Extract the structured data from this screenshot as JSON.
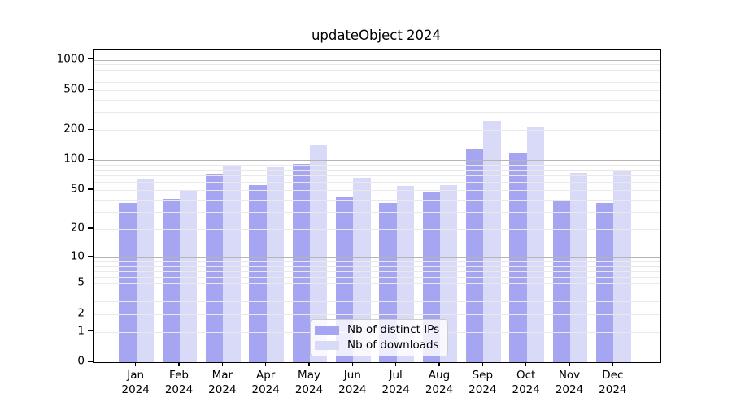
{
  "chart_data": {
    "type": "bar",
    "title": "updateObject 2024",
    "categories": [
      "Jan",
      "Feb",
      "Mar",
      "Apr",
      "May",
      "Jun",
      "Jul",
      "Aug",
      "Sep",
      "Oct",
      "Nov",
      "Dec"
    ],
    "x_tick_year": "2024",
    "series": [
      {
        "name": "Nb of distinct IPs",
        "color": "#a5a5f1",
        "values": [
          37,
          41,
          73,
          56,
          92,
          43,
          37,
          48,
          131,
          116,
          39,
          37
        ]
      },
      {
        "name": "Nb of downloads",
        "color": "#d9d9f8",
        "values": [
          64,
          50,
          89,
          85,
          144,
          66,
          55,
          56,
          246,
          213,
          75,
          81
        ]
      }
    ],
    "y_ticks": [
      0,
      1,
      2,
      5,
      10,
      20,
      50,
      100,
      200,
      500,
      1000
    ],
    "y_scale": "log10(1+x)",
    "ylim": [
      0,
      1265
    ],
    "xlabel": "",
    "ylabel": "",
    "grid": true,
    "grid_minor_color": "#e9e9e9",
    "grid_major_color": "#b5b5b5",
    "grid_major_at": [
      10,
      100,
      1000
    ],
    "legend_position": "inside-bottom-center",
    "background_color": "#ffffff",
    "spine_color": "#000000"
  }
}
